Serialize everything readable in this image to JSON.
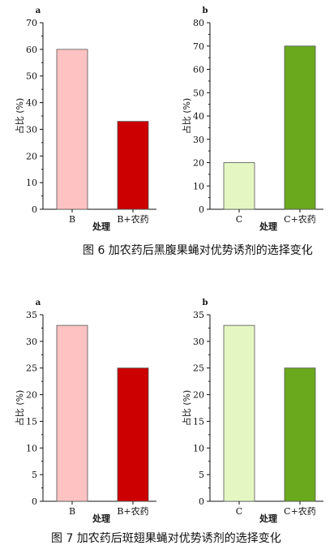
{
  "figures": [
    {
      "caption": "图 6 加农药后黑腹果蝇对优势诱剂的选择变化"
    },
    {
      "caption": "图 7 加农药后斑翅果蝇对优势诱剂的选择变化"
    }
  ],
  "chart_data": [
    {
      "type": "bar",
      "panel_label": "a",
      "ylabel": "占比 (%)",
      "xlabel": "处理",
      "categories": [
        "B",
        "B+农药"
      ],
      "values": [
        60,
        33
      ],
      "colors": [
        "#ffc2c2",
        "#cc0000"
      ],
      "ylim": [
        0,
        70
      ],
      "yticks": [
        0,
        10,
        20,
        30,
        40,
        50,
        60,
        70
      ]
    },
    {
      "type": "bar",
      "panel_label": "b",
      "ylabel": "占比 (%)",
      "xlabel": "处理",
      "categories": [
        "C",
        "C+农药"
      ],
      "values": [
        20,
        70
      ],
      "colors": [
        "#e4f7c2",
        "#6aa81e"
      ],
      "ylim": [
        0,
        80
      ],
      "yticks": [
        0,
        10,
        20,
        30,
        40,
        50,
        60,
        70,
        80
      ]
    },
    {
      "type": "bar",
      "panel_label": "a",
      "ylabel": "占比 (%)",
      "xlabel": "处理",
      "categories": [
        "B",
        "B+农药"
      ],
      "values": [
        33,
        25
      ],
      "colors": [
        "#ffc2c2",
        "#cc0000"
      ],
      "ylim": [
        0,
        35
      ],
      "yticks": [
        0,
        5,
        10,
        15,
        20,
        25,
        30,
        35
      ]
    },
    {
      "type": "bar",
      "panel_label": "b",
      "ylabel": "占比 (%)",
      "xlabel": "处理",
      "categories": [
        "C",
        "C+农药"
      ],
      "values": [
        33,
        25
      ],
      "colors": [
        "#e4f7c2",
        "#6aa81e"
      ],
      "ylim": [
        0,
        35
      ],
      "yticks": [
        0,
        5,
        10,
        15,
        20,
        25,
        30,
        35
      ]
    }
  ]
}
